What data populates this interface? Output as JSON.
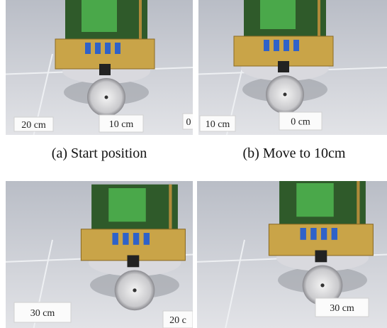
{
  "panels": [
    {
      "caption": "(a) Start position",
      "labels": [
        "20 cm",
        "10 cm",
        "0"
      ]
    },
    {
      "caption": "(b) Move to 10cm",
      "labels": [
        "10 cm",
        "0 cm"
      ]
    },
    {
      "labels": [
        "30 cm",
        "20 c"
      ]
    },
    {
      "labels": [
        "30 cm"
      ]
    }
  ]
}
